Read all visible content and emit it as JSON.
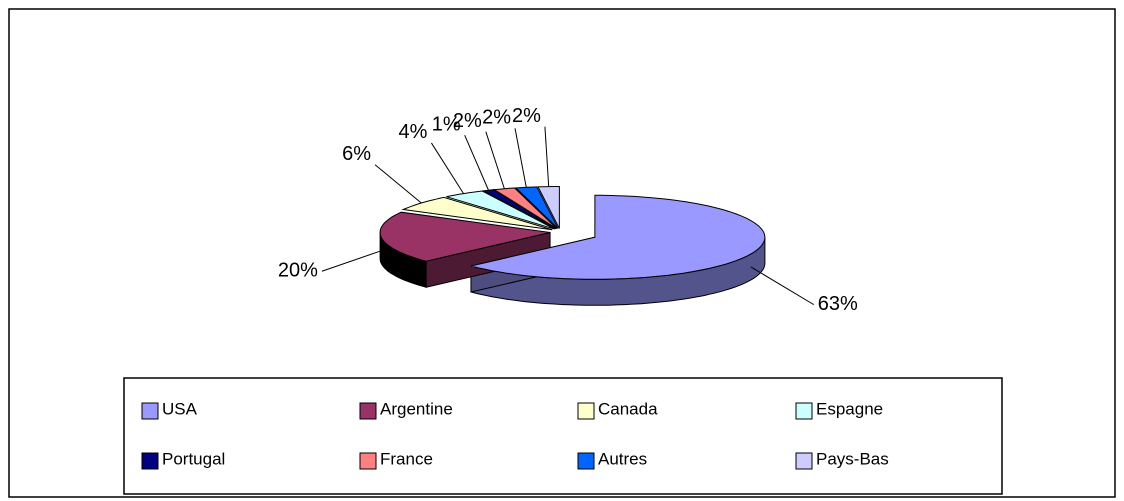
{
  "chart_data": {
    "type": "pie",
    "categories": [
      "USA",
      "Argentine",
      "Canada",
      "Espagne",
      "Portugal",
      "France",
      "Autres",
      "Pays-Bas"
    ],
    "values": [
      63,
      20,
      6,
      4,
      1,
      2,
      2,
      2
    ],
    "value_labels": [
      "63%",
      "20%",
      "6%",
      "4%",
      "1%",
      "2%",
      "2%",
      "2%"
    ],
    "colors": [
      "#9999ff",
      "#993366",
      "#ffffcc",
      "#ccffff",
      "#000080",
      "#ff8080",
      "#0066ff",
      "#ccccff"
    ]
  }
}
